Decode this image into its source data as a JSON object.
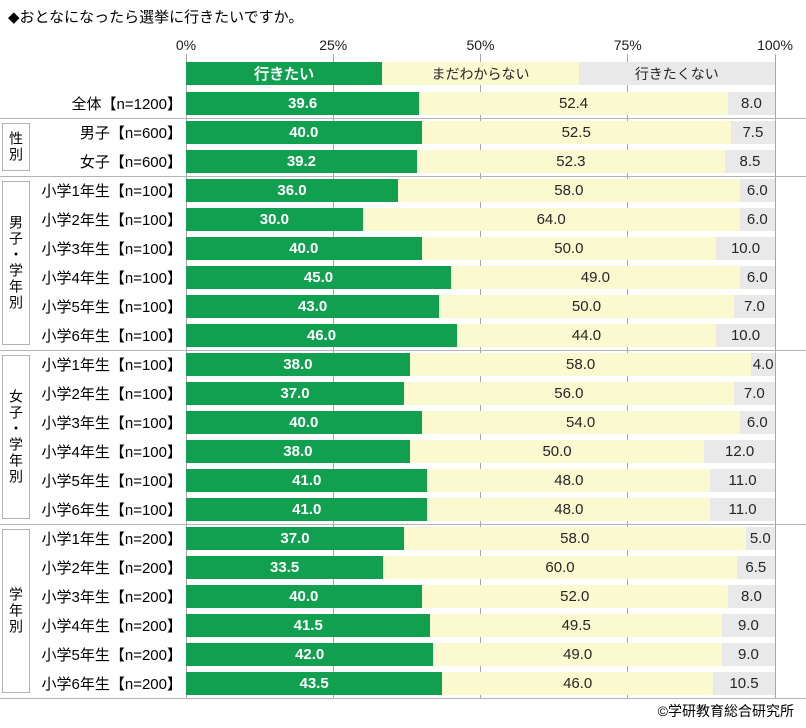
{
  "title": "◆おとなになったら選挙に行きたいですか。",
  "footer": {
    "copyright": "©学研教育総合研究所"
  },
  "chart_data": {
    "type": "bar",
    "orientation": "horizontal",
    "stacked": true,
    "title": "◆おとなになったら選挙に行きたいですか。",
    "x_axis": {
      "tick_labels": [
        "0%",
        "25%",
        "50%",
        "75%",
        "100%"
      ],
      "range": [
        0,
        100
      ],
      "grid": true
    },
    "legend_position": "top",
    "legend": [
      {
        "key": "want",
        "label": "行きたい",
        "color": "#11a050",
        "text_color": "#ffffff"
      },
      {
        "key": "unsure",
        "label": "まだわからない",
        "color": "#faf9d0",
        "text_color": "#262626"
      },
      {
        "key": "not-want",
        "label": "行きたくない",
        "color": "#e9e9e9",
        "text_color": "#262626"
      }
    ],
    "groups": [
      {
        "key": "overall",
        "label": "",
        "rows": [
          {
            "label": "全体【n=1200】",
            "values": [
              39.6,
              52.4,
              8.0
            ]
          }
        ]
      },
      {
        "key": "sex",
        "label": "性別",
        "rows": [
          {
            "label": "男子【n=600】",
            "values": [
              40.0,
              52.5,
              7.5
            ]
          },
          {
            "label": "女子【n=600】",
            "values": [
              39.2,
              52.3,
              8.5
            ]
          }
        ]
      },
      {
        "key": "boys-by-grade",
        "label": "男子・学年別",
        "rows": [
          {
            "label": "小学1年生【n=100】",
            "values": [
              36.0,
              58.0,
              6.0
            ]
          },
          {
            "label": "小学2年生【n=100】",
            "values": [
              30.0,
              64.0,
              6.0
            ]
          },
          {
            "label": "小学3年生【n=100】",
            "values": [
              40.0,
              50.0,
              10.0
            ]
          },
          {
            "label": "小学4年生【n=100】",
            "values": [
              45.0,
              49.0,
              6.0
            ]
          },
          {
            "label": "小学5年生【n=100】",
            "values": [
              43.0,
              50.0,
              7.0
            ]
          },
          {
            "label": "小学6年生【n=100】",
            "values": [
              46.0,
              44.0,
              10.0
            ]
          }
        ]
      },
      {
        "key": "girls-by-grade",
        "label": "女子・学年別",
        "rows": [
          {
            "label": "小学1年生【n=100】",
            "values": [
              38.0,
              58.0,
              4.0
            ]
          },
          {
            "label": "小学2年生【n=100】",
            "values": [
              37.0,
              56.0,
              7.0
            ]
          },
          {
            "label": "小学3年生【n=100】",
            "values": [
              40.0,
              54.0,
              6.0
            ]
          },
          {
            "label": "小学4年生【n=100】",
            "values": [
              38.0,
              50.0,
              12.0
            ]
          },
          {
            "label": "小学5年生【n=100】",
            "values": [
              41.0,
              48.0,
              11.0
            ]
          },
          {
            "label": "小学6年生【n=100】",
            "values": [
              41.0,
              48.0,
              11.0
            ]
          }
        ]
      },
      {
        "key": "by-grade",
        "label": "学年別",
        "rows": [
          {
            "label": "小学1年生【n=200】",
            "values": [
              37.0,
              58.0,
              5.0
            ]
          },
          {
            "label": "小学2年生【n=200】",
            "values": [
              33.5,
              60.0,
              6.5
            ]
          },
          {
            "label": "小学3年生【n=200】",
            "values": [
              40.0,
              52.0,
              8.0
            ]
          },
          {
            "label": "小学4年生【n=200】",
            "values": [
              41.5,
              49.5,
              9.0
            ]
          },
          {
            "label": "小学5年生【n=200】",
            "values": [
              42.0,
              49.0,
              9.0
            ]
          },
          {
            "label": "小学6年生【n=200】",
            "values": [
              43.5,
              46.0,
              10.5
            ]
          }
        ]
      }
    ]
  }
}
